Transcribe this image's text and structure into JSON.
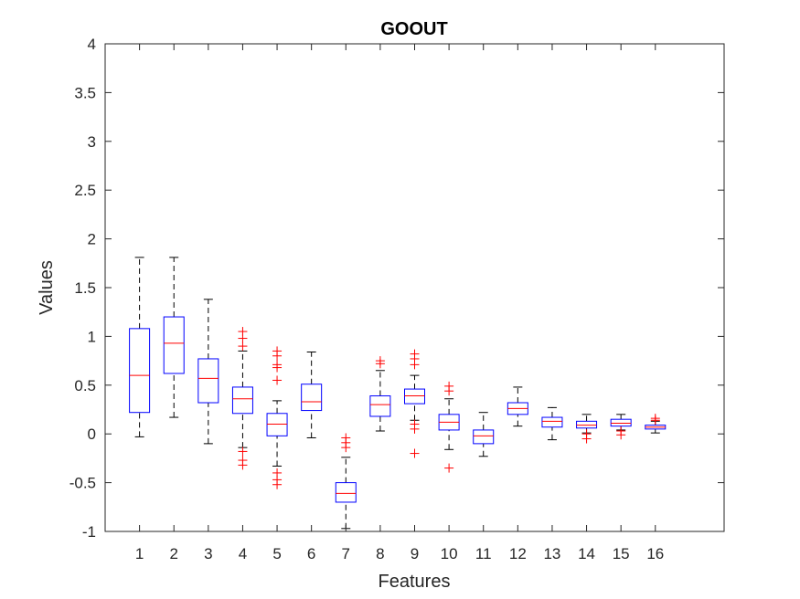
{
  "chart_data": {
    "type": "boxplot",
    "title": "GOOUT",
    "xlabel": "Features",
    "ylabel": "Values",
    "ylim": [
      -1,
      4
    ],
    "xlim": [
      0,
      18
    ],
    "yticks": [
      "-1",
      "-0.5",
      "0",
      "0.5",
      "1",
      "1.5",
      "2",
      "2.5",
      "3",
      "3.5",
      "4"
    ],
    "categories": [
      "1",
      "2",
      "3",
      "4",
      "5",
      "6",
      "7",
      "8",
      "9",
      "10",
      "11",
      "12",
      "13",
      "14",
      "15",
      "16"
    ],
    "grid": false,
    "colors": {
      "box": "#0000ff",
      "median": "#ff0000",
      "whisker": "#000000",
      "outlier": "#ff0000"
    },
    "boxes": [
      {
        "feature": "1",
        "whisker_low": -0.03,
        "q1": 0.22,
        "median": 0.6,
        "q3": 1.08,
        "whisker_high": 1.81,
        "outliers": []
      },
      {
        "feature": "2",
        "whisker_low": 0.17,
        "q1": 0.62,
        "median": 0.93,
        "q3": 1.2,
        "whisker_high": 1.81,
        "outliers": []
      },
      {
        "feature": "3",
        "whisker_low": -0.1,
        "q1": 0.32,
        "median": 0.57,
        "q3": 0.77,
        "whisker_high": 1.38,
        "outliers": []
      },
      {
        "feature": "4",
        "whisker_low": -0.14,
        "q1": 0.21,
        "median": 0.36,
        "q3": 0.48,
        "whisker_high": 0.85,
        "outliers": [
          1.05,
          0.98,
          0.9,
          -0.18,
          -0.27,
          -0.32
        ]
      },
      {
        "feature": "5",
        "whisker_low": -0.33,
        "q1": -0.02,
        "median": 0.1,
        "q3": 0.21,
        "whisker_high": 0.34,
        "outliers": [
          0.85,
          0.8,
          0.71,
          0.68,
          0.55,
          -0.4,
          -0.47,
          -0.52
        ]
      },
      {
        "feature": "6",
        "whisker_low": -0.04,
        "q1": 0.24,
        "median": 0.33,
        "q3": 0.51,
        "whisker_high": 0.84,
        "outliers": []
      },
      {
        "feature": "7",
        "whisker_low": -0.97,
        "q1": -0.7,
        "median": -0.61,
        "q3": -0.5,
        "whisker_high": -0.24,
        "outliers": [
          -0.04,
          -0.09,
          -0.14
        ]
      },
      {
        "feature": "8",
        "whisker_low": 0.03,
        "q1": 0.18,
        "median": 0.3,
        "q3": 0.39,
        "whisker_high": 0.65,
        "outliers": [
          0.75,
          0.72
        ]
      },
      {
        "feature": "9",
        "whisker_low": 0.14,
        "q1": 0.31,
        "median": 0.39,
        "q3": 0.46,
        "whisker_high": 0.6,
        "outliers": [
          0.82,
          0.77,
          0.71,
          0.1,
          0.05,
          -0.2
        ]
      },
      {
        "feature": "10",
        "whisker_low": -0.16,
        "q1": 0.04,
        "median": 0.12,
        "q3": 0.2,
        "whisker_high": 0.36,
        "outliers": [
          0.49,
          0.44,
          -0.35
        ]
      },
      {
        "feature": "11",
        "whisker_low": -0.23,
        "q1": -0.1,
        "median": -0.02,
        "q3": 0.04,
        "whisker_high": 0.22,
        "outliers": []
      },
      {
        "feature": "12",
        "whisker_low": 0.08,
        "q1": 0.2,
        "median": 0.26,
        "q3": 0.32,
        "whisker_high": 0.48,
        "outliers": []
      },
      {
        "feature": "13",
        "whisker_low": -0.06,
        "q1": 0.07,
        "median": 0.13,
        "q3": 0.17,
        "whisker_high": 0.27,
        "outliers": []
      },
      {
        "feature": "14",
        "whisker_low": 0.01,
        "q1": 0.06,
        "median": 0.09,
        "q3": 0.13,
        "whisker_high": 0.2,
        "outliers": [
          0.0,
          -0.05
        ]
      },
      {
        "feature": "15",
        "whisker_low": 0.04,
        "q1": 0.08,
        "median": 0.11,
        "q3": 0.15,
        "whisker_high": 0.2,
        "outliers": [
          0.03,
          -0.01
        ]
      },
      {
        "feature": "16",
        "whisker_low": 0.01,
        "q1": 0.05,
        "median": 0.07,
        "q3": 0.09,
        "whisker_high": 0.13,
        "outliers": [
          0.16,
          0.14
        ]
      }
    ]
  }
}
